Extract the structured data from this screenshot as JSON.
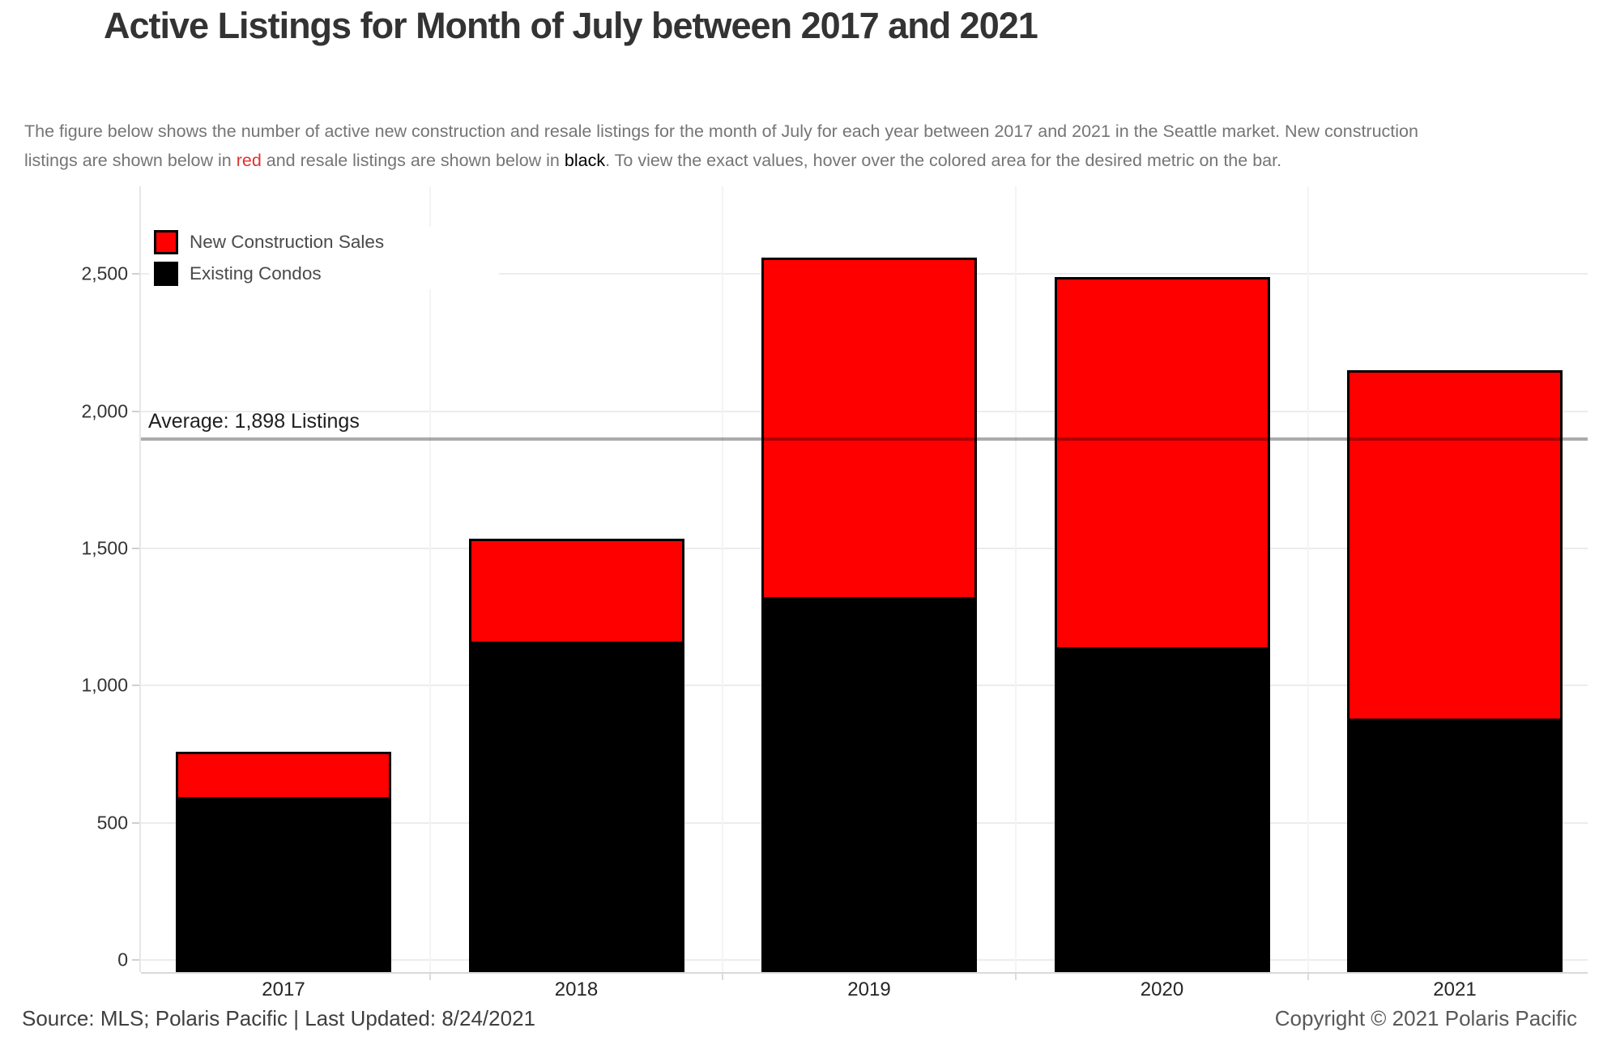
{
  "title": "Active Listings for Month of July between 2017 and 2021",
  "description": {
    "line1": "The figure below shows the number of active new construction and resale listings for the month of July for each year between 2017 and 2021 in the Seattle market. New construction",
    "line2_prefix": "listings are shown below in ",
    "red_word": "red",
    "line2_mid": " and resale listings are shown below in ",
    "black_word": "black",
    "line2_suffix": ". To view the exact values, hover over the colored area for the desired metric on the bar."
  },
  "colors": {
    "new_construction_red": "#ff0000",
    "existing_condos_black": "#000000",
    "description_red_word": "#e03030",
    "description_black_word": "#000000",
    "average_line_gray": "#a8a8a8"
  },
  "legend": {
    "items": [
      {
        "label": "New Construction Sales",
        "color": "#ff0000"
      },
      {
        "label": "Existing Condos",
        "color": "#000000"
      }
    ]
  },
  "average_line": {
    "label": "Average: 1,898 Listings",
    "value": 1898
  },
  "footer": {
    "source": "Source: MLS; Polaris Pacific | Last Updated: 8/24/2021",
    "copyright": "Copyright © 2021 Polaris Pacific"
  },
  "chart_data": {
    "type": "bar",
    "stacked": true,
    "title": "Active Listings for Month of July between 2017 and 2021",
    "xlabel": "",
    "ylabel": "",
    "categories": [
      "2017",
      "2018",
      "2019",
      "2020",
      "2021"
    ],
    "series": [
      {
        "name": "Existing Condos",
        "color": "#000000",
        "values": [
          585,
          1150,
          1315,
          1130,
          870
        ]
      },
      {
        "name": "New Construction Sales",
        "color": "#ff0000",
        "values": [
          175,
          385,
          1245,
          1360,
          1280
        ]
      }
    ],
    "totals": [
      760,
      1535,
      2560,
      2490,
      2150
    ],
    "average": 1898,
    "average_label": "Average: 1,898 Listings",
    "ylim": [
      0,
      2650
    ],
    "yticks": [
      {
        "value": 0,
        "label": "0"
      },
      {
        "value": 500,
        "label": "500"
      },
      {
        "value": 1000,
        "label": "1,000"
      },
      {
        "value": 1500,
        "label": "1,500"
      },
      {
        "value": 2000,
        "label": "2,000"
      },
      {
        "value": 2500,
        "label": "2,500"
      }
    ],
    "grid": true,
    "legend_position": "top-left"
  }
}
